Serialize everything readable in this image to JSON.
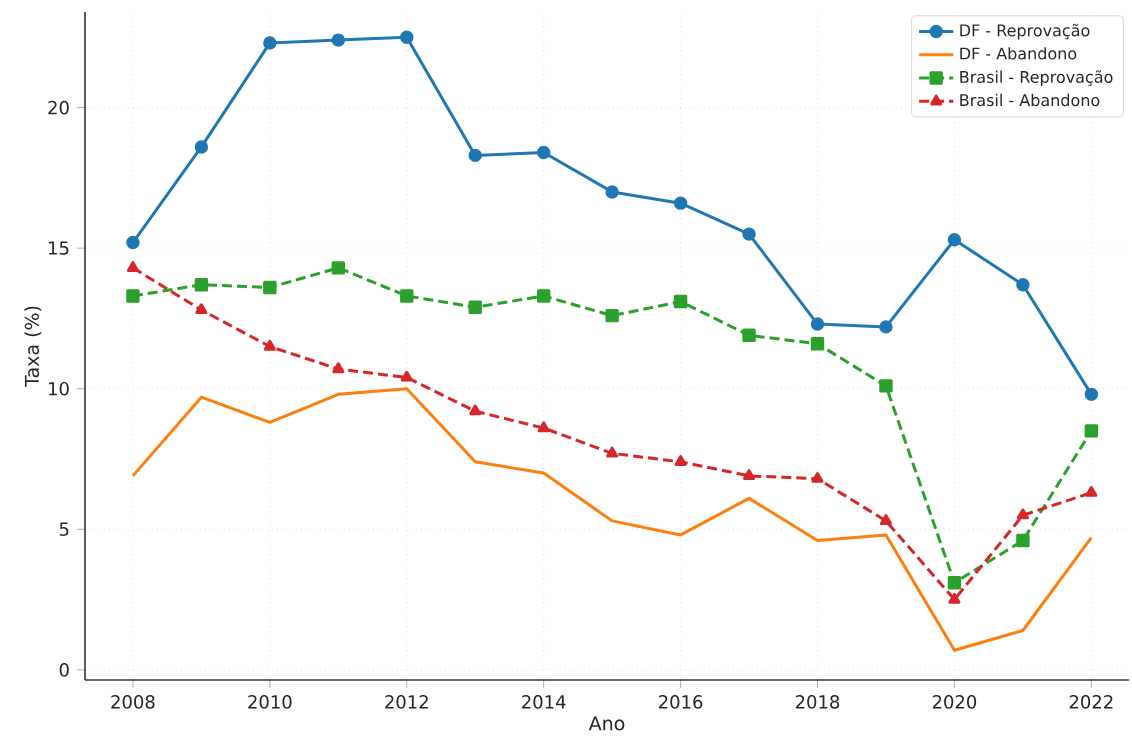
{
  "chart_data": {
    "type": "line",
    "xlabel": "Ano",
    "ylabel": "Taxa (%)",
    "x": [
      2008,
      2009,
      2010,
      2011,
      2012,
      2013,
      2014,
      2015,
      2016,
      2017,
      2018,
      2019,
      2020,
      2021,
      2022
    ],
    "series": [
      {
        "name": "DF - Reprovação",
        "color": "#1f77b4",
        "marker": "circle",
        "line_style": "solid",
        "values": [
          15.2,
          18.6,
          22.3,
          22.4,
          22.5,
          18.3,
          18.4,
          17.0,
          16.6,
          15.5,
          12.3,
          12.2,
          15.3,
          13.7,
          9.8
        ]
      },
      {
        "name": "DF - Abandono",
        "color": "#ff7f0e",
        "marker": "none",
        "line_style": "solid",
        "values": [
          6.9,
          9.7,
          8.8,
          9.8,
          10.0,
          7.4,
          7.0,
          5.3,
          4.8,
          6.1,
          4.6,
          4.8,
          0.7,
          1.4,
          4.7
        ]
      },
      {
        "name": "Brasil - Reprovação",
        "color": "#2ca02c",
        "marker": "square",
        "line_style": "dashed",
        "values": [
          13.3,
          13.7,
          13.6,
          14.3,
          13.3,
          12.9,
          13.3,
          12.6,
          13.1,
          11.9,
          11.6,
          10.1,
          3.1,
          4.6,
          8.5
        ]
      },
      {
        "name": "Brasil - Abandono",
        "color": "#d62728",
        "marker": "triangle",
        "line_style": "dashed",
        "values": [
          14.3,
          12.8,
          11.5,
          10.7,
          10.4,
          9.2,
          8.6,
          7.7,
          7.4,
          6.9,
          6.8,
          5.3,
          2.5,
          5.5,
          6.3
        ]
      }
    ],
    "xlim": [
      2007.3,
      2022.55
    ],
    "ylim": [
      -0.36,
      23.4
    ],
    "xticks": [
      2008,
      2010,
      2012,
      2014,
      2016,
      2018,
      2020,
      2022
    ],
    "yticks": [
      0,
      5,
      10,
      15,
      20
    ],
    "grid": true,
    "legend": "top right"
  }
}
